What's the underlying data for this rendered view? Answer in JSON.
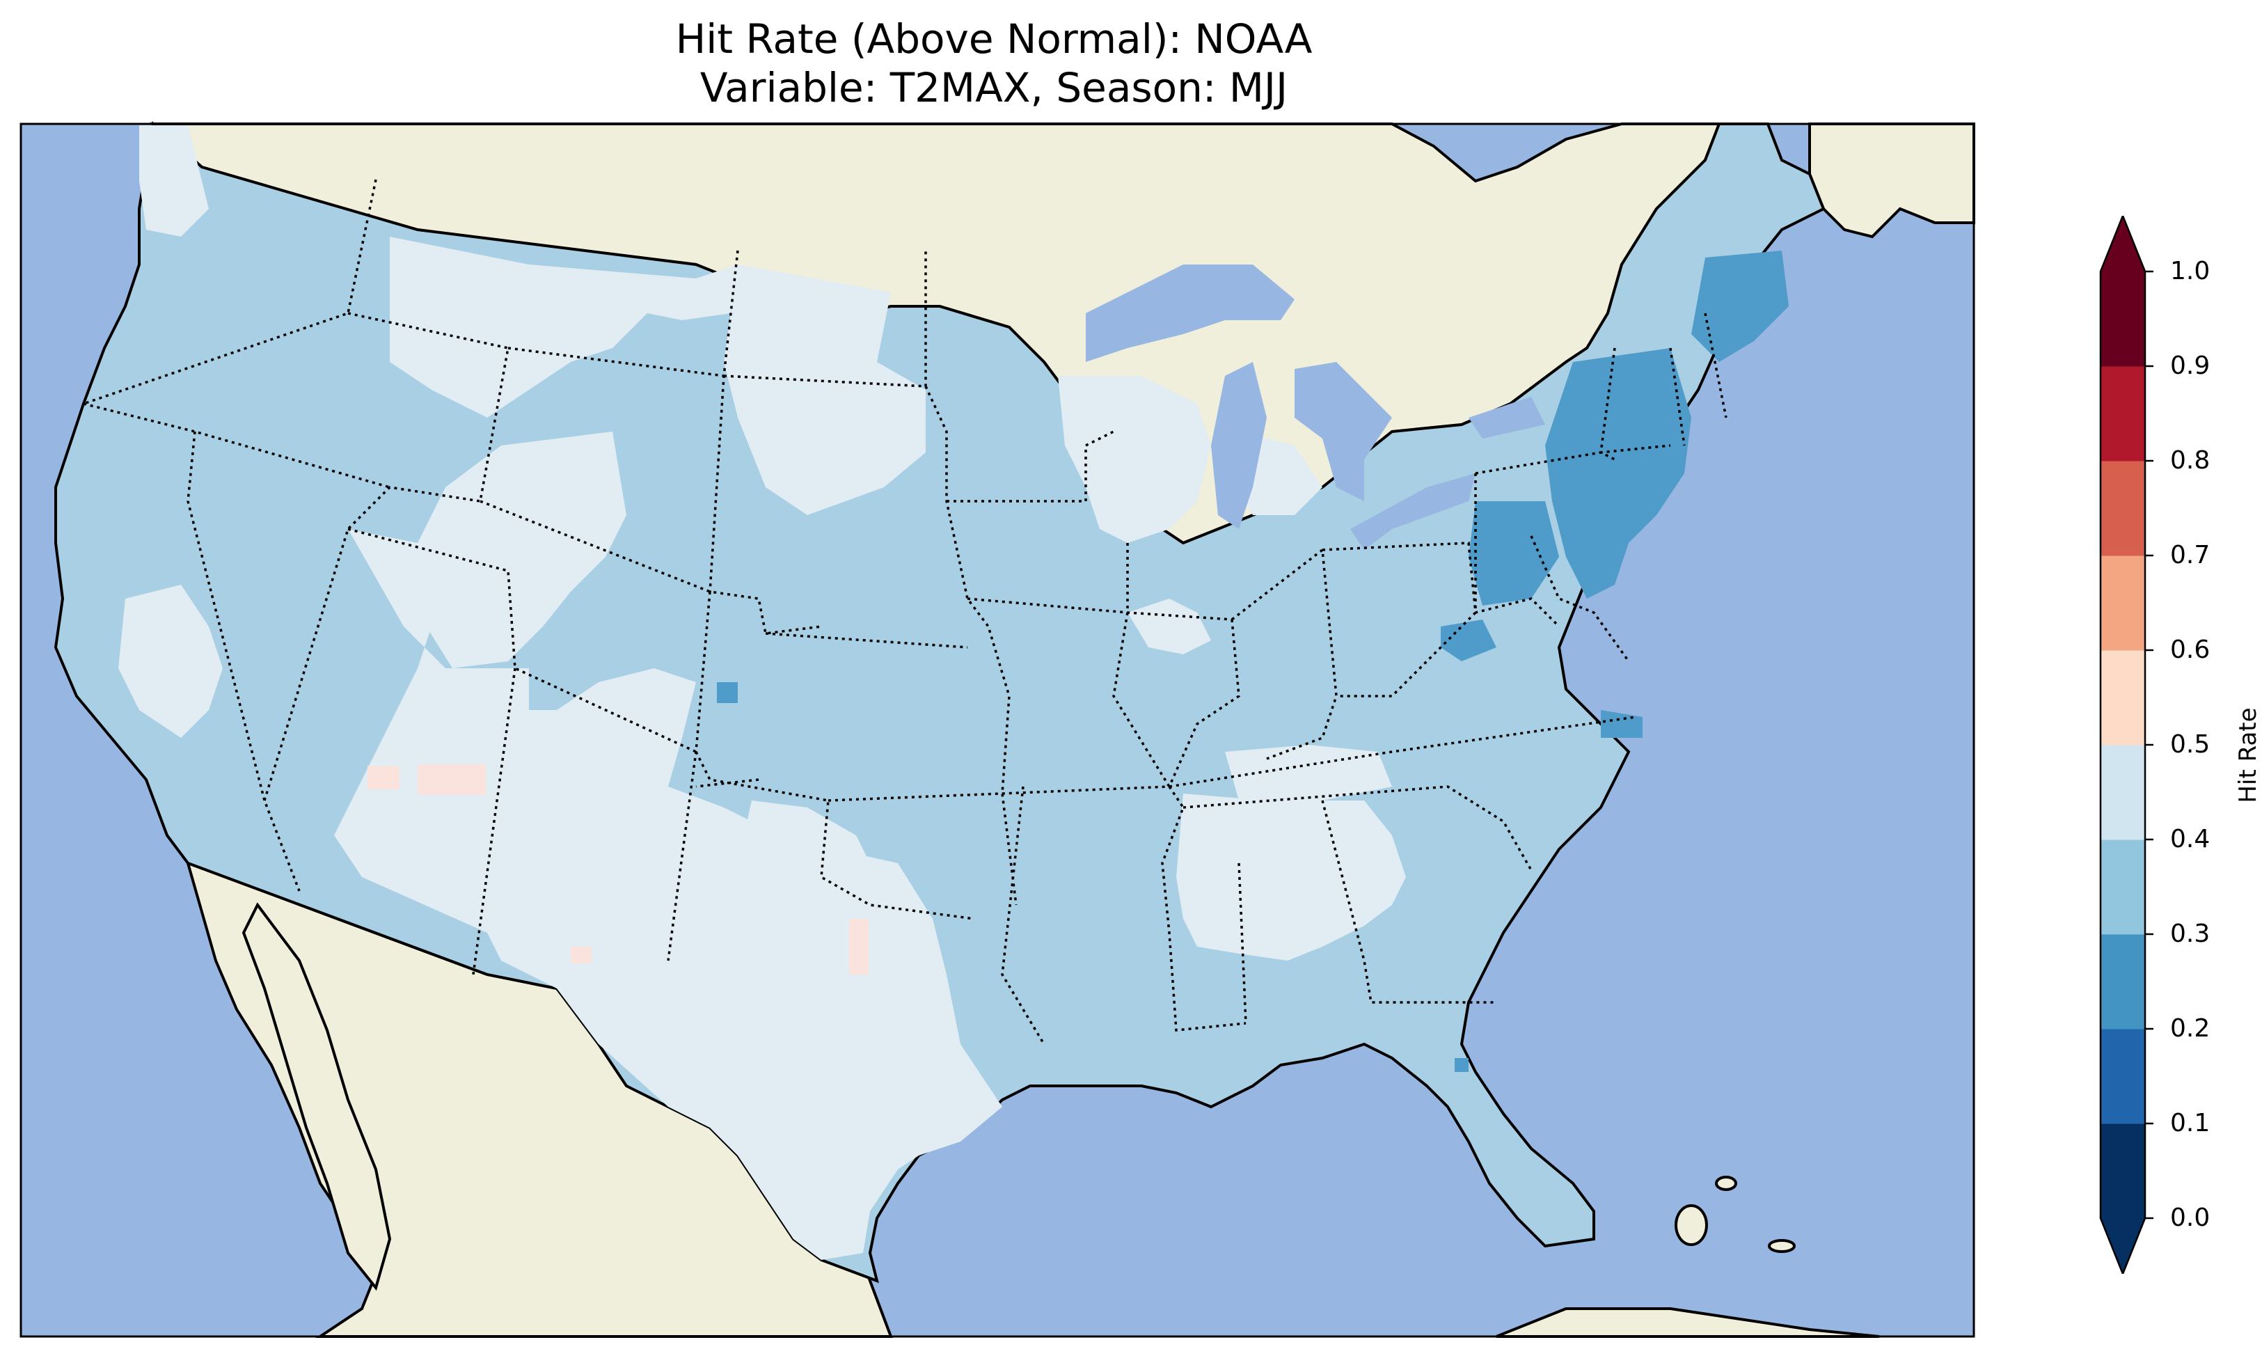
{
  "figure": {
    "title_line1": "Hit Rate (Above Normal): NOAA",
    "title_line2": "Variable: T2MAX, Season: MJJ"
  },
  "map": {
    "projection": "PlateCarree",
    "extent_lon": [
      -125,
      -66
    ],
    "extent_lat": [
      23,
      50
    ],
    "ocean_color": "#97b6e1",
    "land_color": "#efefdb",
    "state_borders": "dotted",
    "coastlines": "solid"
  },
  "colorbar": {
    "label": "Hit Rate",
    "ticks": [
      "0.0",
      "0.1",
      "0.2",
      "0.3",
      "0.4",
      "0.5",
      "0.6",
      "0.7",
      "0.8",
      "0.9",
      "1.0"
    ],
    "colors": [
      "#053061",
      "#2166ac",
      "#4393c3",
      "#92c5de",
      "#d1e5f0",
      "#fddbc7",
      "#f4a582",
      "#d6604d",
      "#b2182b",
      "#67001f"
    ],
    "extend": "both"
  },
  "legend_bins_used": {
    "0.2-0.3": "#4f9bc9",
    "0.3-0.4": "#a8cfe3",
    "0.4-0.5": "#e1ecf3",
    "0.5-0.6": "#f9e3dc"
  }
}
